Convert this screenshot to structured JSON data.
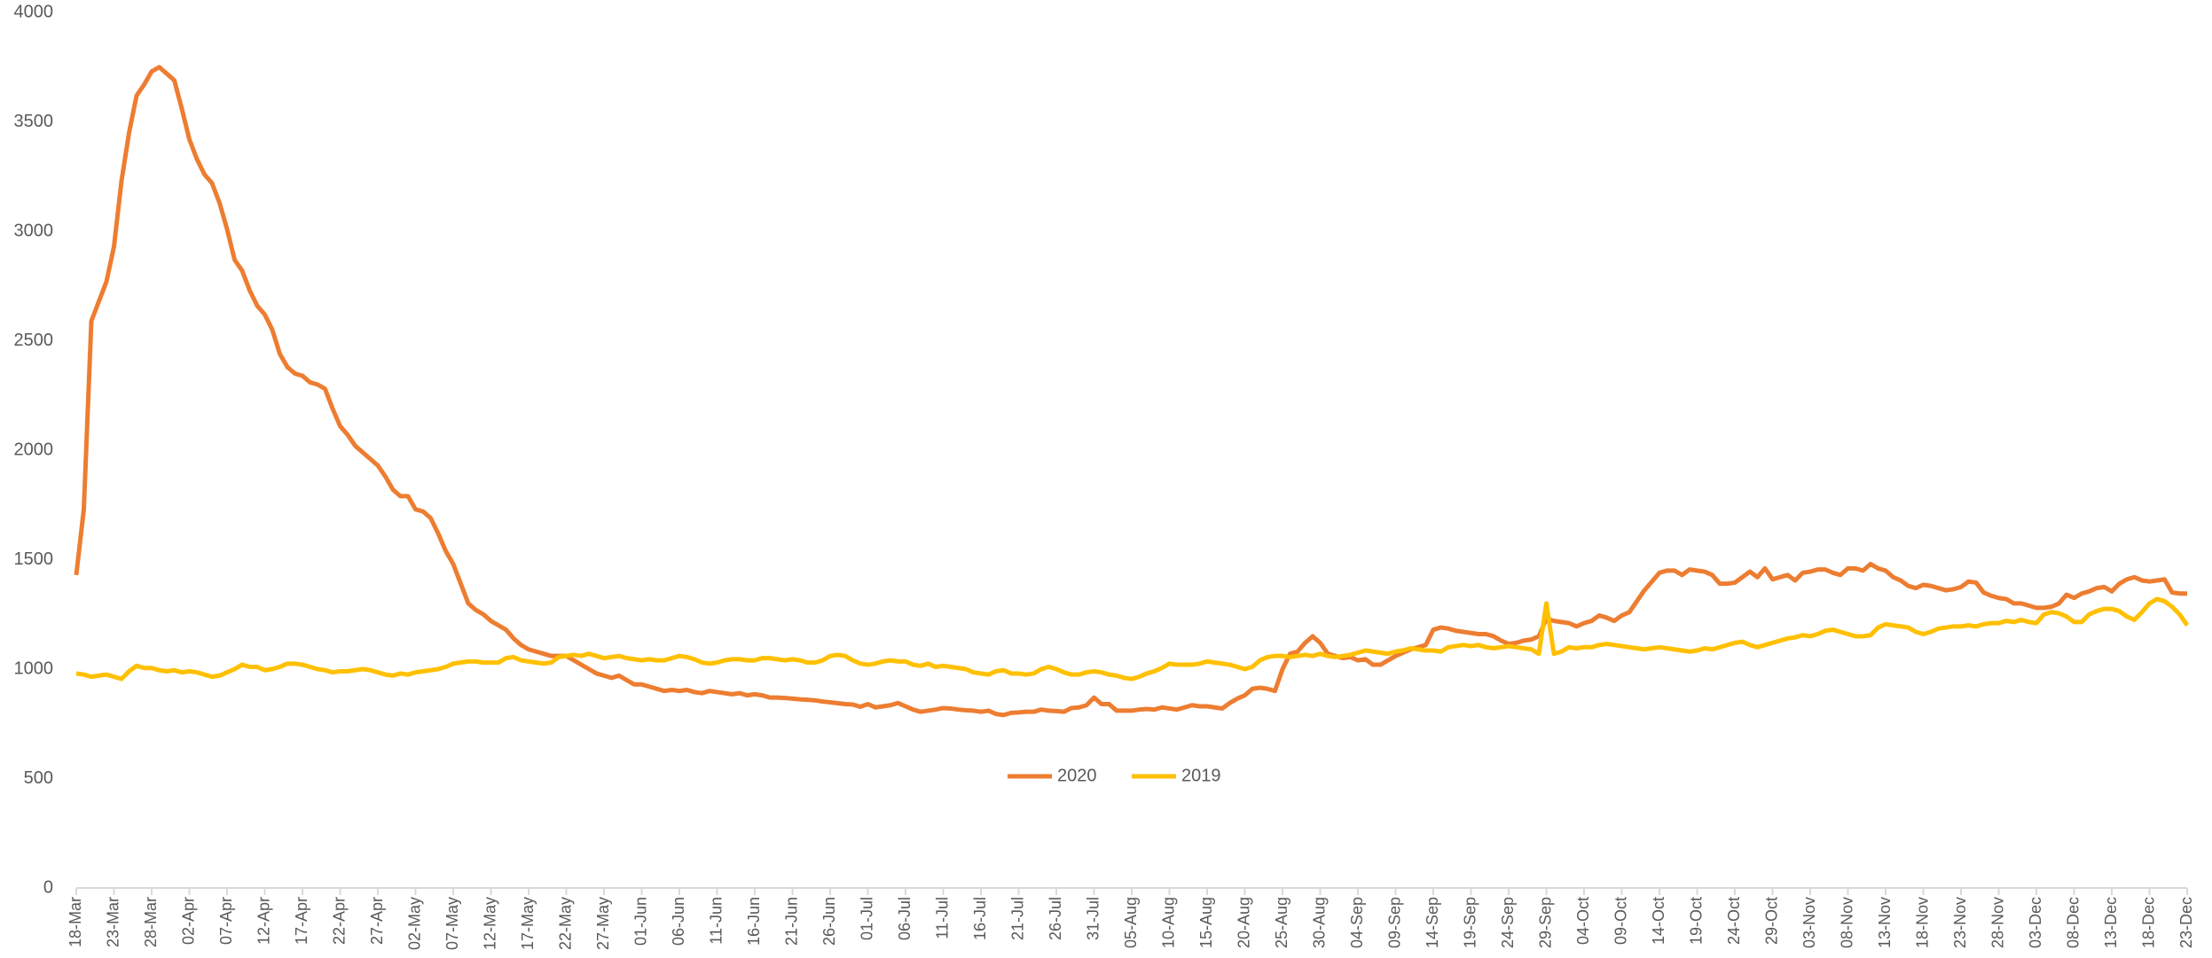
{
  "chart_data": {
    "type": "line",
    "categories": [
      "18-Mar",
      null,
      null,
      null,
      null,
      "23-Mar",
      null,
      null,
      null,
      null,
      "28-Mar",
      null,
      null,
      null,
      null,
      "02-Apr",
      null,
      null,
      null,
      null,
      "07-Apr",
      null,
      null,
      null,
      null,
      "12-Apr",
      null,
      null,
      null,
      null,
      "17-Apr",
      null,
      null,
      null,
      null,
      "22-Apr",
      null,
      null,
      null,
      null,
      "27-Apr",
      null,
      null,
      null,
      null,
      "02-May",
      null,
      null,
      null,
      null,
      "07-May",
      null,
      null,
      null,
      null,
      "12-May",
      null,
      null,
      null,
      null,
      "17-May",
      null,
      null,
      null,
      null,
      "22-May",
      null,
      null,
      null,
      null,
      "27-May",
      null,
      null,
      null,
      null,
      "01-Jun",
      null,
      null,
      null,
      null,
      "06-Jun",
      null,
      null,
      null,
      null,
      "11-Jun",
      null,
      null,
      null,
      null,
      "16-Jun",
      null,
      null,
      null,
      null,
      "21-Jun",
      null,
      null,
      null,
      null,
      "26-Jun",
      null,
      null,
      null,
      null,
      "01-Jul",
      null,
      null,
      null,
      null,
      "06-Jul",
      null,
      null,
      null,
      null,
      "11-Jul",
      null,
      null,
      null,
      null,
      "16-Jul",
      null,
      null,
      null,
      null,
      "21-Jul",
      null,
      null,
      null,
      null,
      "26-Jul",
      null,
      null,
      null,
      null,
      "31-Jul",
      null,
      null,
      null,
      null,
      "05-Aug",
      null,
      null,
      null,
      null,
      "10-Aug",
      null,
      null,
      null,
      null,
      "15-Aug",
      null,
      null,
      null,
      null,
      "20-Aug",
      null,
      null,
      null,
      null,
      "25-Aug",
      null,
      null,
      null,
      null,
      "30-Aug",
      null,
      null,
      null,
      null,
      "04-Sep",
      null,
      null,
      null,
      null,
      "09-Sep",
      null,
      null,
      null,
      null,
      "14-Sep",
      null,
      null,
      null,
      null,
      "19-Sep",
      null,
      null,
      null,
      null,
      "24-Sep",
      null,
      null,
      null,
      null,
      "29-Sep",
      null,
      null,
      null,
      null,
      "04-Oct",
      null,
      null,
      null,
      null,
      "09-Oct",
      null,
      null,
      null,
      null,
      "14-Oct",
      null,
      null,
      null,
      null,
      "19-Oct",
      null,
      null,
      null,
      null,
      "24-Oct",
      null,
      null,
      null,
      null,
      "29-Oct",
      null,
      null,
      null,
      null,
      "03-Nov",
      null,
      null,
      null,
      null,
      "08-Nov",
      null,
      null,
      null,
      null,
      "13-Nov",
      null,
      null,
      null,
      null,
      "18-Nov",
      null,
      null,
      null,
      null,
      "23-Nov",
      null,
      null,
      null,
      null,
      "28-Nov",
      null,
      null,
      null,
      null,
      "03-Dec",
      null,
      null,
      null,
      null,
      "08-Dec",
      null,
      null,
      null,
      null,
      "13-Dec",
      null,
      null,
      null,
      null,
      "18-Dec",
      null,
      null,
      null,
      null,
      "23-Dec"
    ],
    "series": [
      {
        "name": "2020",
        "color": "#ED7D31",
        "values": [
          1430,
          1730,
          2590,
          2680,
          2770,
          2930,
          3230,
          3450,
          3620,
          3670,
          3730,
          3750,
          3720,
          3690,
          3560,
          3420,
          3330,
          3260,
          3220,
          3130,
          3010,
          2870,
          2820,
          2730,
          2660,
          2620,
          2550,
          2440,
          2380,
          2350,
          2340,
          2310,
          2300,
          2280,
          2190,
          2110,
          2070,
          2020,
          1990,
          1960,
          1930,
          1880,
          1820,
          1790,
          1790,
          1730,
          1720,
          1690,
          1620,
          1540,
          1480,
          1390,
          1300,
          1270,
          1250,
          1220,
          1200,
          1180,
          1140,
          1110,
          1090,
          1080,
          1070,
          1060,
          1060,
          1060,
          1040,
          1020,
          1000,
          980,
          970,
          960,
          970,
          950,
          930,
          930,
          920,
          910,
          900,
          905,
          900,
          905,
          895,
          890,
          900,
          895,
          890,
          885,
          890,
          880,
          885,
          880,
          870,
          870,
          868,
          865,
          862,
          860,
          857,
          852,
          848,
          844,
          840,
          838,
          828,
          840,
          825,
          830,
          835,
          845,
          830,
          815,
          805,
          810,
          815,
          822,
          820,
          815,
          812,
          810,
          805,
          810,
          795,
          790,
          800,
          802,
          805,
          805,
          815,
          810,
          808,
          805,
          822,
          825,
          835,
          870,
          840,
          840,
          810,
          810,
          810,
          815,
          818,
          815,
          825,
          820,
          815,
          825,
          835,
          830,
          830,
          825,
          820,
          845,
          865,
          880,
          910,
          915,
          910,
          900,
          1000,
          1070,
          1080,
          1120,
          1150,
          1120,
          1070,
          1060,
          1050,
          1055,
          1040,
          1045,
          1020,
          1020,
          1040,
          1060,
          1075,
          1090,
          1100,
          1110,
          1180,
          1190,
          1185,
          1175,
          1170,
          1165,
          1160,
          1160,
          1150,
          1130,
          1115,
          1120,
          1130,
          1135,
          1150,
          1230,
          1220,
          1215,
          1210,
          1195,
          1210,
          1220,
          1245,
          1235,
          1220,
          1245,
          1260,
          1310,
          1360,
          1400,
          1440,
          1450,
          1450,
          1430,
          1455,
          1450,
          1445,
          1430,
          1390,
          1390,
          1395,
          1420,
          1445,
          1420,
          1460,
          1410,
          1420,
          1430,
          1405,
          1440,
          1445,
          1455,
          1455,
          1440,
          1430,
          1460,
          1460,
          1450,
          1480,
          1460,
          1450,
          1420,
          1405,
          1380,
          1370,
          1385,
          1380,
          1370,
          1360,
          1365,
          1375,
          1400,
          1395,
          1350,
          1335,
          1325,
          1320,
          1300,
          1300,
          1290,
          1280,
          1280,
          1285,
          1300,
          1340,
          1325,
          1345,
          1355,
          1370,
          1375,
          1355,
          1390,
          1410,
          1420,
          1405,
          1400,
          1405,
          1410,
          1350,
          1345,
          1345
        ]
      },
      {
        "name": "2019",
        "color": "#FFC000",
        "values": [
          980,
          975,
          965,
          970,
          975,
          965,
          955,
          990,
          1015,
          1005,
          1005,
          995,
          990,
          995,
          985,
          990,
          985,
          975,
          965,
          970,
          985,
          1000,
          1020,
          1010,
          1010,
          995,
          1000,
          1010,
          1025,
          1025,
          1020,
          1010,
          1000,
          995,
          985,
          990,
          990,
          995,
          1000,
          995,
          985,
          975,
          970,
          980,
          975,
          985,
          990,
          995,
          1000,
          1010,
          1025,
          1030,
          1035,
          1035,
          1030,
          1030,
          1030,
          1050,
          1055,
          1040,
          1035,
          1030,
          1025,
          1030,
          1055,
          1060,
          1065,
          1060,
          1070,
          1060,
          1050,
          1055,
          1060,
          1050,
          1045,
          1040,
          1045,
          1040,
          1040,
          1050,
          1060,
          1055,
          1045,
          1030,
          1025,
          1030,
          1040,
          1045,
          1045,
          1040,
          1040,
          1050,
          1050,
          1045,
          1040,
          1045,
          1040,
          1030,
          1030,
          1040,
          1060,
          1065,
          1060,
          1040,
          1025,
          1020,
          1025,
          1035,
          1040,
          1035,
          1035,
          1020,
          1015,
          1025,
          1010,
          1015,
          1010,
          1005,
          1000,
          985,
          980,
          975,
          990,
          995,
          980,
          980,
          975,
          980,
          1000,
          1010,
          1000,
          985,
          975,
          975,
          985,
          990,
          985,
          975,
          970,
          960,
          955,
          965,
          980,
          990,
          1005,
          1025,
          1020,
          1020,
          1020,
          1025,
          1035,
          1030,
          1025,
          1020,
          1010,
          1000,
          1010,
          1040,
          1055,
          1060,
          1060,
          1055,
          1060,
          1065,
          1060,
          1070,
          1060,
          1055,
          1060,
          1065,
          1075,
          1085,
          1080,
          1075,
          1070,
          1080,
          1085,
          1095,
          1090,
          1085,
          1085,
          1080,
          1100,
          1105,
          1110,
          1105,
          1110,
          1100,
          1095,
          1100,
          1105,
          1100,
          1095,
          1090,
          1070,
          1300,
          1070,
          1080,
          1100,
          1095,
          1100,
          1100,
          1110,
          1115,
          1110,
          1105,
          1100,
          1095,
          1090,
          1095,
          1100,
          1095,
          1090,
          1085,
          1080,
          1085,
          1095,
          1090,
          1100,
          1110,
          1120,
          1125,
          1110,
          1100,
          1110,
          1120,
          1130,
          1140,
          1145,
          1155,
          1150,
          1160,
          1175,
          1180,
          1170,
          1160,
          1150,
          1150,
          1155,
          1190,
          1205,
          1200,
          1195,
          1190,
          1170,
          1160,
          1170,
          1185,
          1190,
          1195,
          1195,
          1200,
          1195,
          1205,
          1210,
          1210,
          1220,
          1215,
          1225,
          1215,
          1210,
          1250,
          1260,
          1255,
          1240,
          1215,
          1215,
          1250,
          1265,
          1275,
          1275,
          1265,
          1240,
          1225,
          1260,
          1300,
          1320,
          1310,
          1285,
          1250,
          1200
        ]
      }
    ],
    "ylim": [
      0,
      4000
    ],
    "yticks": [
      0,
      500,
      1000,
      1500,
      2000,
      2500,
      3000,
      3500,
      4000
    ],
    "grid": false,
    "legend": "center"
  }
}
